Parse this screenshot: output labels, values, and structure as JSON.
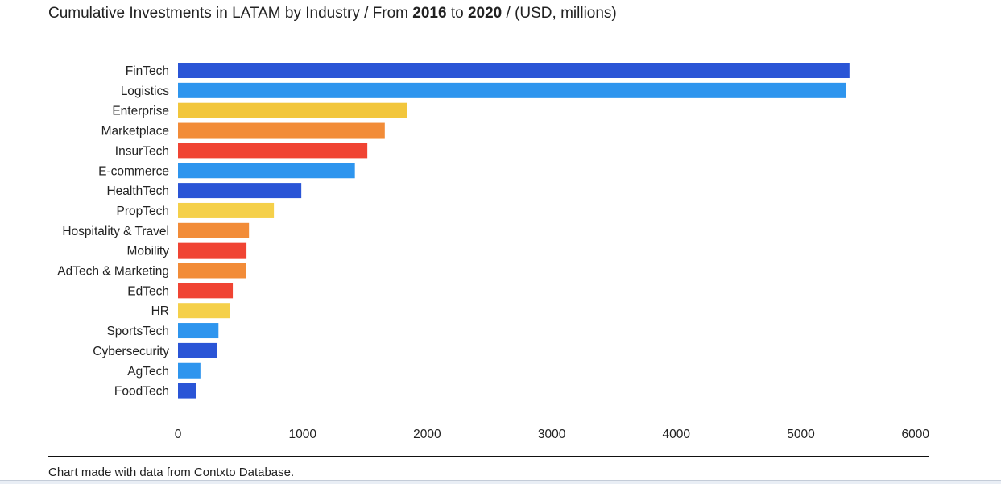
{
  "title": {
    "prefix": "Cumulative Investments in LATAM by Industry / From ",
    "year_start": "2016",
    "middle": " to ",
    "year_end": "2020",
    "suffix": " / (USD, millions)"
  },
  "source_note": "Chart made with data from Contxto Database.",
  "colors": {
    "dark_blue": "#2a55d6",
    "light_blue": "#2e95ee",
    "yellow": "#f2c63c",
    "orange": "#f28c38",
    "red": "#f04433"
  },
  "chart_data": {
    "type": "bar",
    "orientation": "horizontal",
    "title": "Cumulative Investments in LATAM by Industry / From 2016 to 2020 / (USD, millions)",
    "xlabel": "",
    "ylabel": "",
    "xlim": [
      0,
      6000
    ],
    "x_ticks": [
      "0",
      "1000",
      "2000",
      "3000",
      "4000",
      "5000",
      "6000"
    ],
    "grid": false,
    "legend": "none",
    "categories": [
      "FinTech",
      "Logistics",
      "Enterprise",
      "Marketplace",
      "InsurTech",
      "E-commerce",
      "HealthTech",
      "PropTech",
      "Hospitality & Travel",
      "Mobility",
      "AdTech & Marketing",
      "EdTech",
      "HR",
      "SportsTech",
      "Cybersecurity",
      "AgTech",
      "FoodTech"
    ],
    "values": [
      5390,
      5360,
      1840,
      1660,
      1520,
      1420,
      990,
      770,
      570,
      550,
      545,
      440,
      420,
      325,
      315,
      180,
      145
    ],
    "bar_colors": [
      "#2a55d6",
      "#2e95ee",
      "#f2c63c",
      "#f28c38",
      "#f04433",
      "#2e95ee",
      "#2a55d6",
      "#f5d04a",
      "#f28c38",
      "#f04433",
      "#f28c38",
      "#f04433",
      "#f5d04a",
      "#2e95ee",
      "#2a55d6",
      "#2e95ee",
      "#2a55d6"
    ]
  }
}
